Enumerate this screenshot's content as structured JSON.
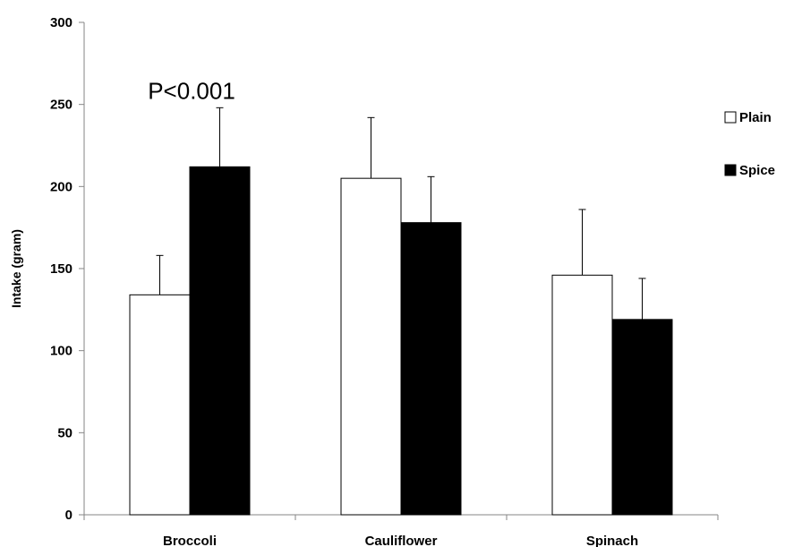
{
  "chart_data": {
    "type": "bar",
    "title": "",
    "xlabel": "",
    "ylabel": "Intake (gram)",
    "ylim": [
      0,
      300
    ],
    "yticks": [
      0,
      50,
      100,
      150,
      200,
      250,
      300
    ],
    "categories": [
      "Broccoli",
      "Cauliflower",
      "Spinach"
    ],
    "series": [
      {
        "name": "Plain",
        "color": "#ffffff",
        "values": [
          134,
          205,
          146
        ],
        "error": [
          24,
          37,
          40
        ]
      },
      {
        "name": "Spice",
        "color": "#000000",
        "values": [
          212,
          178,
          119
        ],
        "error": [
          36,
          28,
          25
        ]
      }
    ],
    "annotations": [
      {
        "text": "P<0.001",
        "category": "Broccoli"
      }
    ],
    "legend_position": "right",
    "grid": false
  }
}
